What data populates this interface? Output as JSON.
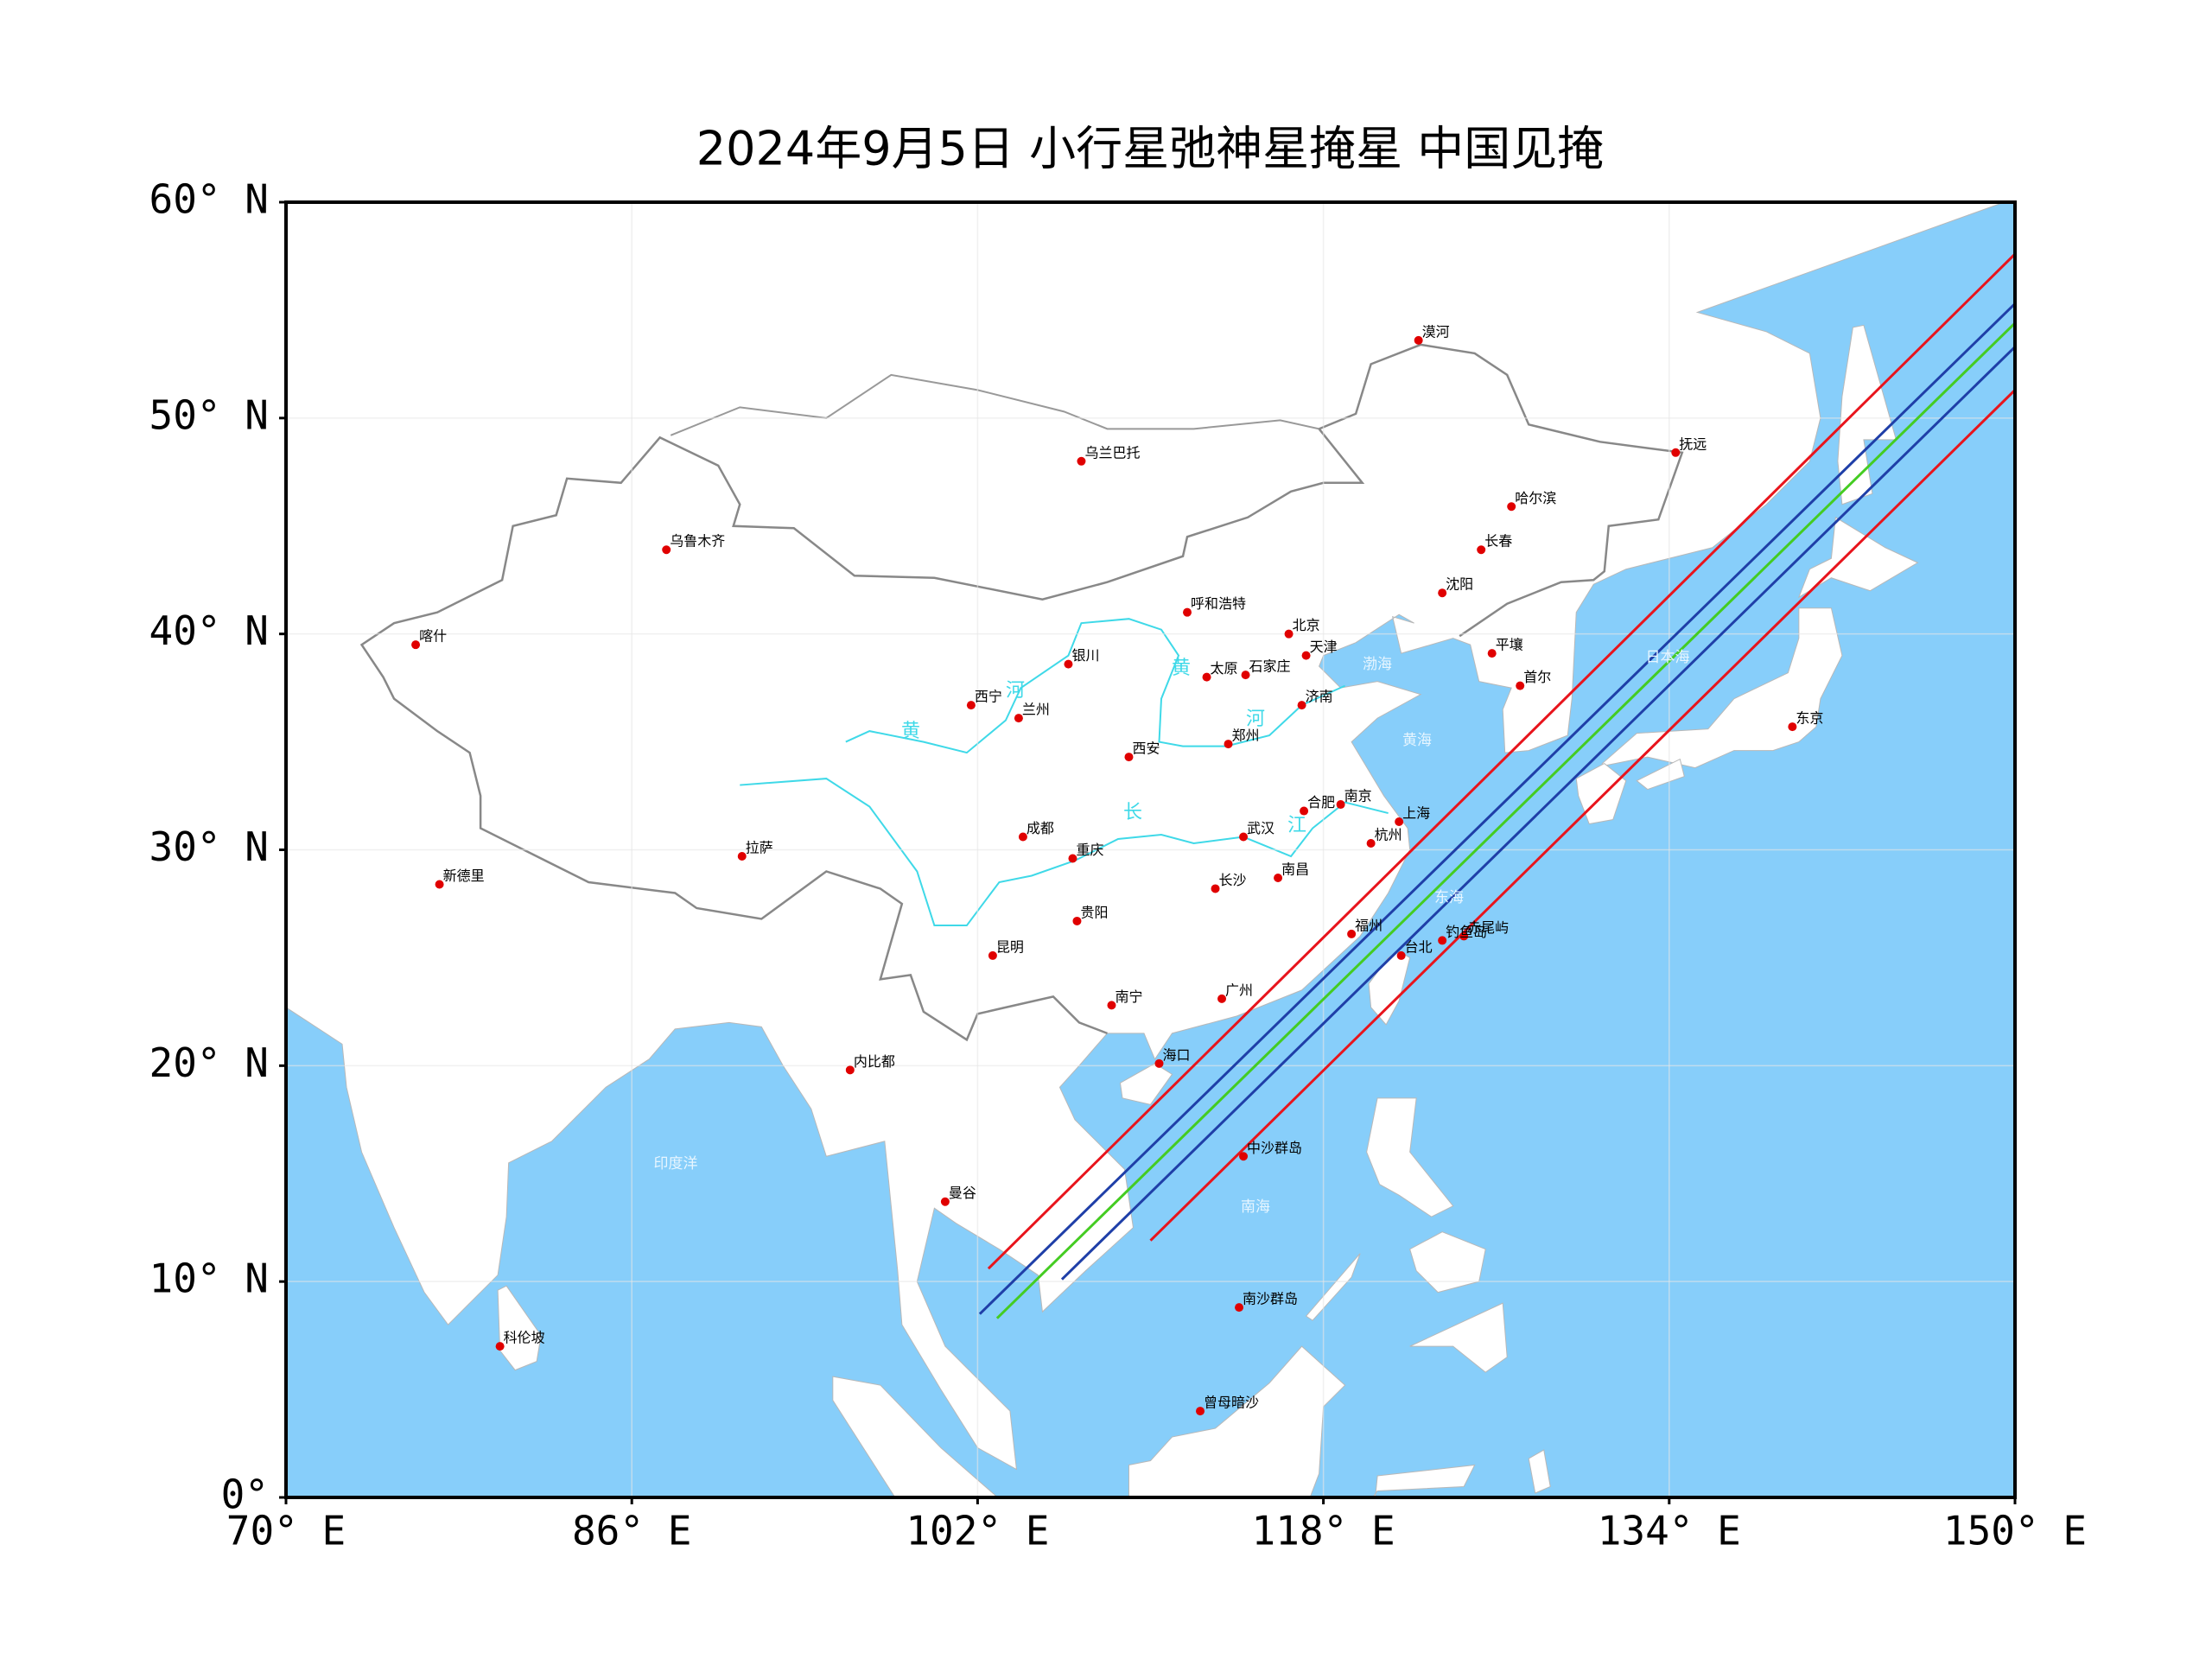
{
  "chart_data": {
    "type": "map",
    "title": "2024年9月5日 小行星弛神星掩星 中国见掩",
    "xlim": [
      70,
      150
    ],
    "ylim": [
      0,
      60
    ],
    "xticks": [
      {
        "value": 70,
        "label": "70° E"
      },
      {
        "value": 86,
        "label": "86° E"
      },
      {
        "value": 102,
        "label": "102° E"
      },
      {
        "value": 118,
        "label": "118° E"
      },
      {
        "value": 134,
        "label": "134° E"
      },
      {
        "value": 150,
        "label": "150° E"
      }
    ],
    "yticks": [
      {
        "value": 0,
        "label": "0°"
      },
      {
        "value": 10,
        "label": "10° N"
      },
      {
        "value": 20,
        "label": "20° N"
      },
      {
        "value": 30,
        "label": "30° N"
      },
      {
        "value": 40,
        "label": "40° N"
      },
      {
        "value": 50,
        "label": "50° N"
      },
      {
        "value": 60,
        "label": "60° N"
      }
    ],
    "grid": true,
    "sea_color": "#87cefa",
    "cities": {
      "color": "#e00000",
      "names": [
        "漠河",
        "乌兰巴托",
        "抚远",
        "哈尔滨",
        "长春",
        "沈阳",
        "乌鲁木齐",
        "喀什",
        "呼和浩特",
        "北京",
        "天津",
        "太原",
        "石家庄",
        "银川",
        "平壤",
        "首尔",
        "西宁",
        "兰州",
        "济南",
        "郑州",
        "西安",
        "东京",
        "合肥",
        "南京",
        "上海",
        "杭州",
        "成都",
        "武汉",
        "重庆",
        "拉萨",
        "新德里",
        "南昌",
        "长沙",
        "贵阳",
        "福州",
        "台北",
        "赤尾屿",
        "钓鱼岛",
        "昆明",
        "广州",
        "南宁",
        "海口",
        "内比都",
        "中沙群岛",
        "曼谷",
        "南沙群岛",
        "曾母暗沙",
        "科伦坡"
      ],
      "lon": [
        122.4,
        106.8,
        134.3,
        126.7,
        125.3,
        123.5,
        87.6,
        76.0,
        111.7,
        116.4,
        117.2,
        112.6,
        114.4,
        106.2,
        125.8,
        127.1,
        101.7,
        103.9,
        117.0,
        113.6,
        109.0,
        139.7,
        117.1,
        118.8,
        121.5,
        120.2,
        104.1,
        114.3,
        106.4,
        91.1,
        77.1,
        115.9,
        113.0,
        106.6,
        119.3,
        121.6,
        124.5,
        123.5,
        102.7,
        113.3,
        108.2,
        110.4,
        96.1,
        114.3,
        100.5,
        114.1,
        112.3,
        79.9
      ],
      "lat": [
        53.6,
        48.0,
        48.4,
        45.9,
        43.9,
        41.9,
        43.9,
        39.5,
        41.0,
        40.0,
        39.0,
        38.0,
        38.1,
        38.6,
        39.1,
        37.6,
        36.7,
        36.1,
        36.7,
        34.9,
        34.3,
        35.7,
        31.8,
        32.1,
        31.3,
        30.3,
        30.6,
        30.6,
        29.6,
        29.7,
        28.4,
        28.7,
        28.2,
        26.7,
        26.1,
        25.1,
        26.0,
        25.8,
        25.1,
        23.1,
        22.8,
        20.1,
        19.8,
        15.8,
        13.7,
        8.8,
        4.0,
        7.0
      ]
    },
    "paths": [
      {
        "color": "#e8141c",
        "lon": [
          102.5,
          150
        ],
        "lat": [
          10.6,
          57.6
        ]
      },
      {
        "color": "#1f3fa8",
        "lon": [
          102.1,
          150
        ],
        "lat": [
          8.5,
          55.3
        ]
      },
      {
        "color": "#44cc22",
        "lon": [
          102.9,
          150
        ],
        "lat": [
          8.3,
          54.4
        ]
      },
      {
        "color": "#1f3fa8",
        "lon": [
          105.9,
          150
        ],
        "lat": [
          10.1,
          53.3
        ]
      },
      {
        "color": "#e8141c",
        "lon": [
          110.0,
          150
        ],
        "lat": [
          11.9,
          51.3
        ]
      }
    ]
  },
  "map_labels": {
    "seas": [
      "渤海",
      "黄海",
      "东海",
      "日本海",
      "南海",
      "印度洋"
    ],
    "rivers": [
      "黄",
      "河",
      "黄",
      "河",
      "长",
      "江"
    ]
  }
}
